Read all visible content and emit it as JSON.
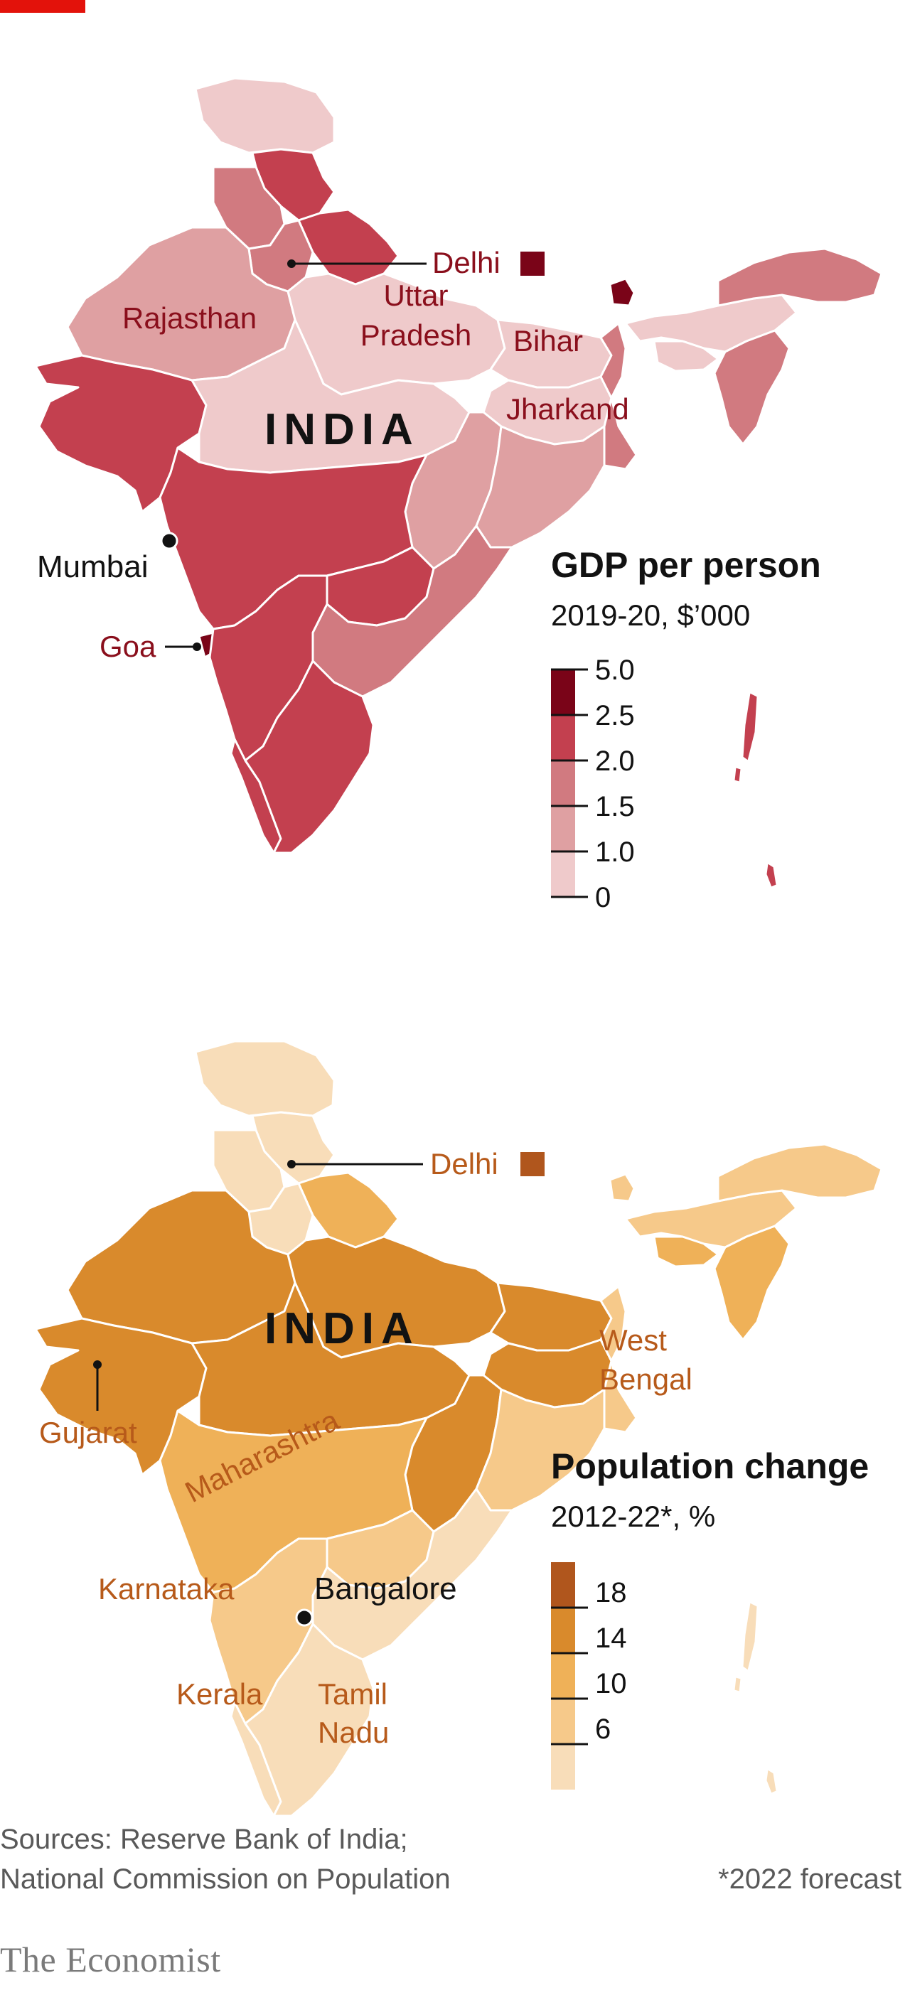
{
  "brand": "The Economist",
  "colors": {
    "accent": "#e3120b",
    "gdp_scale": [
      "#efcacb",
      "#dfa0a2",
      "#d17a80",
      "#c3404f",
      "#7a0418"
    ],
    "pop_scale": [
      "#f8ddb9",
      "#f6c98a",
      "#efb158",
      "#d98a2c",
      "#b0561d"
    ],
    "map_text_red": "#8a0f1c",
    "map_text_orange": "#b75a1a"
  },
  "maps": [
    {
      "country_label": "INDIA",
      "legend": {
        "title": "GDP per person",
        "subtitle": "2019-20, $’000",
        "ticks": [
          "5.0",
          "2.5",
          "2.0",
          "1.5",
          "1.0",
          "0"
        ]
      },
      "labels": {
        "delhi": "Delhi",
        "rajasthan": "Rajasthan",
        "uttar_1": "Uttar",
        "uttar_2": "Pradesh",
        "bihar": "Bihar",
        "jharkand": "Jharkand",
        "mumbai": "Mumbai",
        "goa": "Goa"
      }
    },
    {
      "country_label": "INDIA",
      "legend": {
        "title": "Population change",
        "subtitle": "2012-22*, %",
        "ticks": [
          "18",
          "14",
          "10",
          "6"
        ]
      },
      "labels": {
        "delhi": "Delhi",
        "west_1": "West",
        "west_2": "Bengal",
        "gujarat": "Gujarat",
        "maharashtra": "Maharashtra",
        "karnataka": "Karnataka",
        "bangalore": "Bangalore",
        "kerala": "Kerala",
        "tamil_1": "Tamil",
        "tamil_2": "Nadu"
      }
    }
  ],
  "footer": {
    "sources_1": "Sources: Reserve Bank of India;",
    "sources_2": "National Commission on Population",
    "forecast_note": "*2022 forecast"
  }
}
